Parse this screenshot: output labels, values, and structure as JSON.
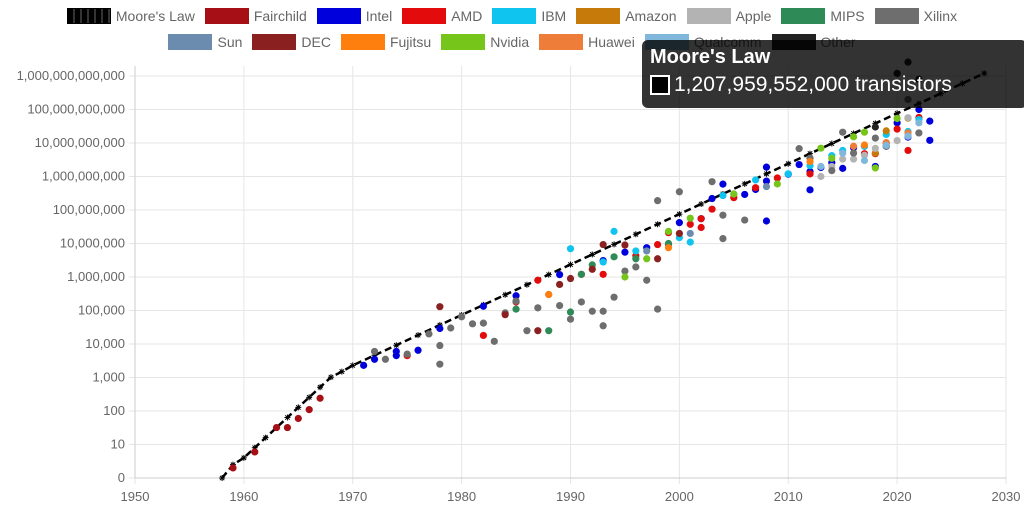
{
  "chart_data": {
    "type": "scatter",
    "title": "",
    "xlabel": "",
    "ylabel": "",
    "xlim": [
      1950,
      2030
    ],
    "ylim": [
      1,
      1000000000000
    ],
    "yscale": "log",
    "x_ticks": [
      1950,
      1960,
      1970,
      1980,
      1990,
      2000,
      2010,
      2020,
      2030
    ],
    "y_tick_values": [
      1,
      10,
      100,
      1000,
      10000,
      100000,
      1000000,
      10000000,
      100000000,
      1000000000,
      10000000000,
      100000000000,
      1000000000000
    ],
    "y_tick_labels": [
      "0",
      "10",
      "100",
      "1,000",
      "10,000",
      "100,000",
      "1,000,000",
      "10,000,000",
      "100,000,000",
      "1,000,000,000",
      "10,000,000,000",
      "100,000,000,000",
      "1,000,000,000,000"
    ],
    "grid": true,
    "legend_position": "top",
    "series": [
      {
        "name": "Moore's Law",
        "color": "#000000",
        "kind": "line",
        "points": [
          [
            1958,
            1
          ],
          [
            1959,
            2.5
          ],
          [
            1960,
            4
          ],
          [
            1961,
            8
          ],
          [
            1962,
            16
          ],
          [
            1963,
            32
          ],
          [
            1964,
            64
          ],
          [
            1965,
            128
          ],
          [
            1966,
            256
          ],
          [
            1967,
            512
          ],
          [
            1968,
            1024
          ],
          [
            1969,
            1500
          ],
          [
            1970,
            2300
          ],
          [
            1972,
            4600
          ],
          [
            1974,
            9200
          ],
          [
            1976,
            18400
          ],
          [
            1978,
            36800
          ],
          [
            1980,
            73600
          ],
          [
            1982,
            147200
          ],
          [
            1984,
            294400
          ],
          [
            1986,
            588800
          ],
          [
            1988,
            1177600
          ],
          [
            1990,
            2355200
          ],
          [
            1992,
            4710400
          ],
          [
            1994,
            9420800
          ],
          [
            1996,
            18841600
          ],
          [
            1998,
            37683200
          ],
          [
            2000,
            75366400
          ],
          [
            2002,
            150732800
          ],
          [
            2004,
            301465600
          ],
          [
            2006,
            602931200
          ],
          [
            2008,
            1205862400
          ],
          [
            2010,
            2411724800
          ],
          [
            2012,
            4823449600
          ],
          [
            2014,
            9646899200
          ],
          [
            2016,
            19293798400
          ],
          [
            2018,
            38587596800
          ],
          [
            2020,
            77175193600
          ],
          [
            2022,
            150000000000
          ],
          [
            2024,
            300000000000
          ],
          [
            2026,
            600000000000
          ],
          [
            2028,
            1207959552000
          ]
        ]
      },
      {
        "name": "Fairchild",
        "color": "#a50f15",
        "points": [
          [
            1959,
            2
          ],
          [
            1961,
            6
          ],
          [
            1963,
            32
          ],
          [
            1964,
            32
          ],
          [
            1965,
            60
          ],
          [
            1966,
            110
          ],
          [
            1967,
            240
          ]
        ]
      },
      {
        "name": "Intel",
        "color": "#0000dd",
        "points": [
          [
            1971,
            2300
          ],
          [
            1972,
            3500
          ],
          [
            1974,
            4500
          ],
          [
            1974,
            6000
          ],
          [
            1976,
            6500
          ],
          [
            1978,
            29000
          ],
          [
            1982,
            134000
          ],
          [
            1985,
            275000
          ],
          [
            1989,
            1180000
          ],
          [
            1993,
            3100000
          ],
          [
            1995,
            5500000
          ],
          [
            1997,
            7500000
          ],
          [
            1999,
            9500000
          ],
          [
            2000,
            42000000
          ],
          [
            2002,
            55000000
          ],
          [
            2003,
            220000000
          ],
          [
            2004,
            592000000
          ],
          [
            2006,
            291000000
          ],
          [
            2007,
            410000000
          ],
          [
            2008,
            731000000
          ],
          [
            2008,
            1900000000
          ],
          [
            2010,
            1170000000
          ],
          [
            2011,
            2270000000
          ],
          [
            2012,
            1400000000
          ],
          [
            2013,
            1860000000
          ],
          [
            2014,
            2600000000
          ],
          [
            2015,
            1750000000
          ],
          [
            2016,
            7200000000
          ],
          [
            2017,
            8000000000
          ],
          [
            2018,
            2000000000
          ],
          [
            2019,
            8000000000
          ],
          [
            2020,
            40000000000
          ],
          [
            2021,
            15000000000
          ],
          [
            2022,
            100000000000
          ],
          [
            2023,
            45000000000
          ],
          [
            2023,
            12000000000
          ],
          [
            2008,
            47000000
          ],
          [
            2012,
            400000000
          ]
        ]
      },
      {
        "name": "AMD",
        "color": "#e30b0b",
        "points": [
          [
            1975,
            4500
          ],
          [
            1982,
            18000
          ],
          [
            1985,
            180000
          ],
          [
            1987,
            800000
          ],
          [
            1991,
            1200000
          ],
          [
            1993,
            1200000
          ],
          [
            1996,
            4300000
          ],
          [
            1998,
            9300000
          ],
          [
            1999,
            21000000
          ],
          [
            2001,
            37500000
          ],
          [
            2003,
            105900000
          ],
          [
            2005,
            233000000
          ],
          [
            2007,
            463000000
          ],
          [
            2009,
            904000000
          ],
          [
            2012,
            1200000000
          ],
          [
            2017,
            4800000000
          ],
          [
            2018,
            4800000000
          ],
          [
            2019,
            9800000000
          ],
          [
            2020,
            26000000000
          ],
          [
            2021,
            6000000000
          ],
          [
            2022,
            58000000000
          ],
          [
            2002,
            30000000
          ],
          [
            2002,
            55000000
          ]
        ]
      },
      {
        "name": "IBM",
        "color": "#0fc5f0",
        "points": [
          [
            1990,
            7000000
          ],
          [
            1993,
            2800000
          ],
          [
            1994,
            23000000
          ],
          [
            1996,
            6000000
          ],
          [
            2000,
            15000000
          ],
          [
            2001,
            11000000
          ],
          [
            2004,
            270000000
          ],
          [
            2007,
            790000000
          ],
          [
            2010,
            1200000000
          ],
          [
            2012,
            2100000000
          ],
          [
            2014,
            4200000000
          ],
          [
            2015,
            6000000000
          ],
          [
            2017,
            8000000000
          ],
          [
            2019,
            18000000000
          ],
          [
            2021,
            22000000000
          ],
          [
            2022,
            50000000000
          ]
        ]
      },
      {
        "name": "Amazon",
        "color": "#c57a0a",
        "points": [
          [
            2018,
            5000000000
          ],
          [
            2019,
            23000000000
          ],
          [
            2021,
            55000000000
          ]
        ]
      },
      {
        "name": "Apple",
        "color": "#b3b3b3",
        "points": [
          [
            2013,
            1000000000
          ],
          [
            2014,
            2000000000
          ],
          [
            2015,
            3300000000
          ],
          [
            2016,
            3300000000
          ],
          [
            2017,
            4300000000
          ],
          [
            2018,
            6900000000
          ],
          [
            2019,
            8500000000
          ],
          [
            2020,
            11800000000
          ],
          [
            2021,
            16000000000
          ],
          [
            2022,
            20000000000
          ],
          [
            2021,
            57000000000
          ]
        ]
      },
      {
        "name": "MIPS",
        "color": "#2e8b57",
        "points": [
          [
            1985,
            110000
          ],
          [
            1988,
            25000
          ],
          [
            1990,
            90000
          ],
          [
            1991,
            1200000
          ],
          [
            1992,
            2300000
          ],
          [
            1994,
            4000000
          ],
          [
            1996,
            3500000
          ],
          [
            1999,
            10000000
          ]
        ]
      },
      {
        "name": "Xilinx",
        "color": "#6e6e6e",
        "points": [
          [
            1972,
            6000
          ],
          [
            1973,
            3500
          ],
          [
            1975,
            5000
          ],
          [
            1977,
            20000
          ],
          [
            1978,
            2500
          ],
          [
            1978,
            9000
          ],
          [
            1979,
            30000
          ],
          [
            1980,
            65000
          ],
          [
            1981,
            40000
          ],
          [
            1982,
            42000
          ],
          [
            1983,
            12000
          ],
          [
            1984,
            85000
          ],
          [
            1985,
            190000
          ],
          [
            1986,
            25000
          ],
          [
            1987,
            120000
          ],
          [
            1988,
            300000
          ],
          [
            1989,
            140000
          ],
          [
            1990,
            55000
          ],
          [
            1991,
            180000
          ],
          [
            1992,
            95000
          ],
          [
            1993,
            35000
          ],
          [
            1993,
            95000
          ],
          [
            1994,
            250000
          ],
          [
            1995,
            1500000
          ],
          [
            1996,
            2000000
          ],
          [
            1997,
            800000
          ],
          [
            1998,
            110000
          ],
          [
            1998,
            190000000
          ],
          [
            2000,
            350000000
          ],
          [
            2003,
            700000000
          ],
          [
            2004,
            14000000
          ],
          [
            2004,
            70000000
          ],
          [
            2006,
            50000000
          ],
          [
            2011,
            6800000000
          ],
          [
            2012,
            3500000000
          ],
          [
            2014,
            1500000000
          ],
          [
            2015,
            21000000000
          ],
          [
            2016,
            5000000000
          ],
          [
            2018,
            14000000000
          ],
          [
            2019,
            8000000000
          ],
          [
            2021,
            200000000000
          ],
          [
            2022,
            20000000000
          ]
        ]
      },
      {
        "name": "Sun",
        "color": "#6b8cae",
        "points": [
          [
            1997,
            6000000
          ],
          [
            2001,
            20000000
          ],
          [
            2005,
            300000000
          ],
          [
            2008,
            500000000
          ]
        ]
      },
      {
        "name": "DEC",
        "color": "#8b2020",
        "points": [
          [
            1978,
            130000
          ],
          [
            1984,
            75000
          ],
          [
            1987,
            25000
          ],
          [
            1989,
            600000
          ],
          [
            1990,
            900000
          ],
          [
            1992,
            1700000
          ],
          [
            1993,
            9300000
          ],
          [
            1995,
            9000000
          ],
          [
            1998,
            3500000
          ],
          [
            2000,
            20000000
          ]
        ]
      },
      {
        "name": "Fujitsu",
        "color": "#ff7f0e",
        "points": [
          [
            1988,
            300000
          ],
          [
            1999,
            7500000
          ],
          [
            2012,
            2800000000
          ],
          [
            2017,
            8700000000
          ]
        ]
      },
      {
        "name": "Nvidia",
        "color": "#76c51b",
        "points": [
          [
            1999,
            23000000
          ],
          [
            2001,
            57000000
          ],
          [
            2005,
            300000000
          ],
          [
            2009,
            600000000
          ],
          [
            2013,
            7000000000
          ],
          [
            2016,
            15300000000
          ],
          [
            2017,
            21000000000
          ],
          [
            2020,
            54000000000
          ],
          [
            1995,
            1000000
          ],
          [
            1997,
            3500000
          ],
          [
            2018,
            1800000000
          ],
          [
            2014,
            3500000000
          ]
        ]
      },
      {
        "name": "Huawei",
        "color": "#ef7d3a",
        "points": [
          [
            2016,
            8000000000
          ],
          [
            2019,
            10300000000
          ],
          [
            2021,
            20000000000
          ]
        ]
      },
      {
        "name": "Qualcomm",
        "color": "#80b8dc",
        "points": [
          [
            2013,
            2000000000
          ],
          [
            2015,
            5000000000
          ],
          [
            2017,
            3000000000
          ],
          [
            2019,
            8500000000
          ],
          [
            2021,
            16000000000
          ],
          [
            2022,
            40000000000
          ]
        ]
      },
      {
        "name": "Other",
        "color": "#222222",
        "points": [
          [
            2018,
            30000000000
          ],
          [
            2020,
            1200000000000
          ],
          [
            2021,
            2600000000000
          ],
          [
            2022,
            800000000000
          ]
        ]
      }
    ]
  },
  "legend": {
    "row1": [
      {
        "label": "Moore's Law",
        "color": "#000000",
        "hatched": true
      },
      {
        "label": "Fairchild",
        "color": "#a50f15"
      },
      {
        "label": "Intel",
        "color": "#0000dd"
      },
      {
        "label": "AMD",
        "color": "#e30b0b"
      },
      {
        "label": "IBM",
        "color": "#0fc5f0"
      },
      {
        "label": "Amazon",
        "color": "#c57a0a"
      },
      {
        "label": "Apple",
        "color": "#b3b3b3"
      },
      {
        "label": "MIPS",
        "color": "#2e8b57"
      },
      {
        "label": "Xilinx",
        "color": "#6e6e6e"
      }
    ],
    "row2": [
      {
        "label": "Sun",
        "color": "#6b8cae"
      },
      {
        "label": "DEC",
        "color": "#8b2020"
      },
      {
        "label": "Fujitsu",
        "color": "#ff7f0e"
      },
      {
        "label": "Nvidia",
        "color": "#76c51b"
      },
      {
        "label": "Huawei",
        "color": "#ef7d3a"
      },
      {
        "label": "Qualcomm",
        "color": "#80b8dc"
      },
      {
        "label": "Other",
        "color": "#222222"
      }
    ]
  },
  "tooltip": {
    "title": "Moore's Law",
    "value_text": "1,207,959,552,000 transistors",
    "swatch_color": "#000000"
  }
}
